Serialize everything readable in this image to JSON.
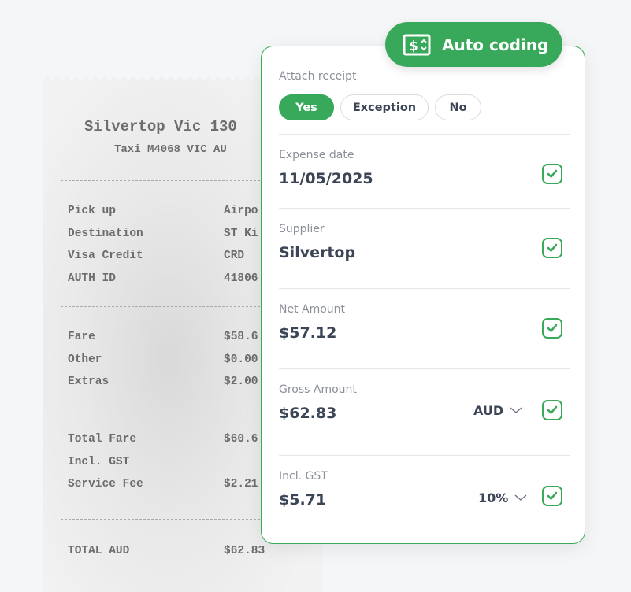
{
  "receipt": {
    "title": "Silvertop Vic 130",
    "subtitle": "Taxi M4068 VIC AU",
    "group1": [
      {
        "label": "Pick up",
        "value": "Airpo"
      },
      {
        "label": "Destination",
        "value": "ST Ki"
      },
      {
        "label": "Visa Credit",
        "value": "CRD"
      },
      {
        "label": "AUTH ID",
        "value": "41806"
      }
    ],
    "group2": [
      {
        "label": "Fare",
        "value": "$58.6"
      },
      {
        "label": "Other",
        "value": "$0.00"
      },
      {
        "label": "Extras",
        "value": "$2.00"
      }
    ],
    "group3": [
      {
        "label": "Total Fare",
        "value": "$60.6"
      },
      {
        "label": "Incl. GST",
        "value": ""
      },
      {
        "label": "Service Fee",
        "value": "$2.21"
      }
    ],
    "total": {
      "label": "TOTAL AUD",
      "value": "$62.83"
    }
  },
  "badge": {
    "label": "Auto coding",
    "icon": "dollar-sort-icon"
  },
  "form": {
    "attach": {
      "label": "Attach receipt",
      "options": [
        "Yes",
        "Exception",
        "No"
      ],
      "selected": "Yes"
    },
    "expense_date": {
      "label": "Expense date",
      "value": "11/05/2025",
      "checked": true
    },
    "supplier": {
      "label": "Supplier",
      "value": "Silvertop",
      "checked": true
    },
    "net": {
      "label": "Net Amount",
      "value": "$57.12",
      "checked": true
    },
    "gross": {
      "label": "Gross Amount",
      "value": "$62.83",
      "currency": "AUD",
      "checked": true
    },
    "gst": {
      "label": "Incl. GST",
      "value": "$5.71",
      "rate": "10%",
      "checked": true
    }
  },
  "colors": {
    "accent": "#38a85a",
    "text": "#3b4556",
    "muted": "#8a8f98"
  }
}
